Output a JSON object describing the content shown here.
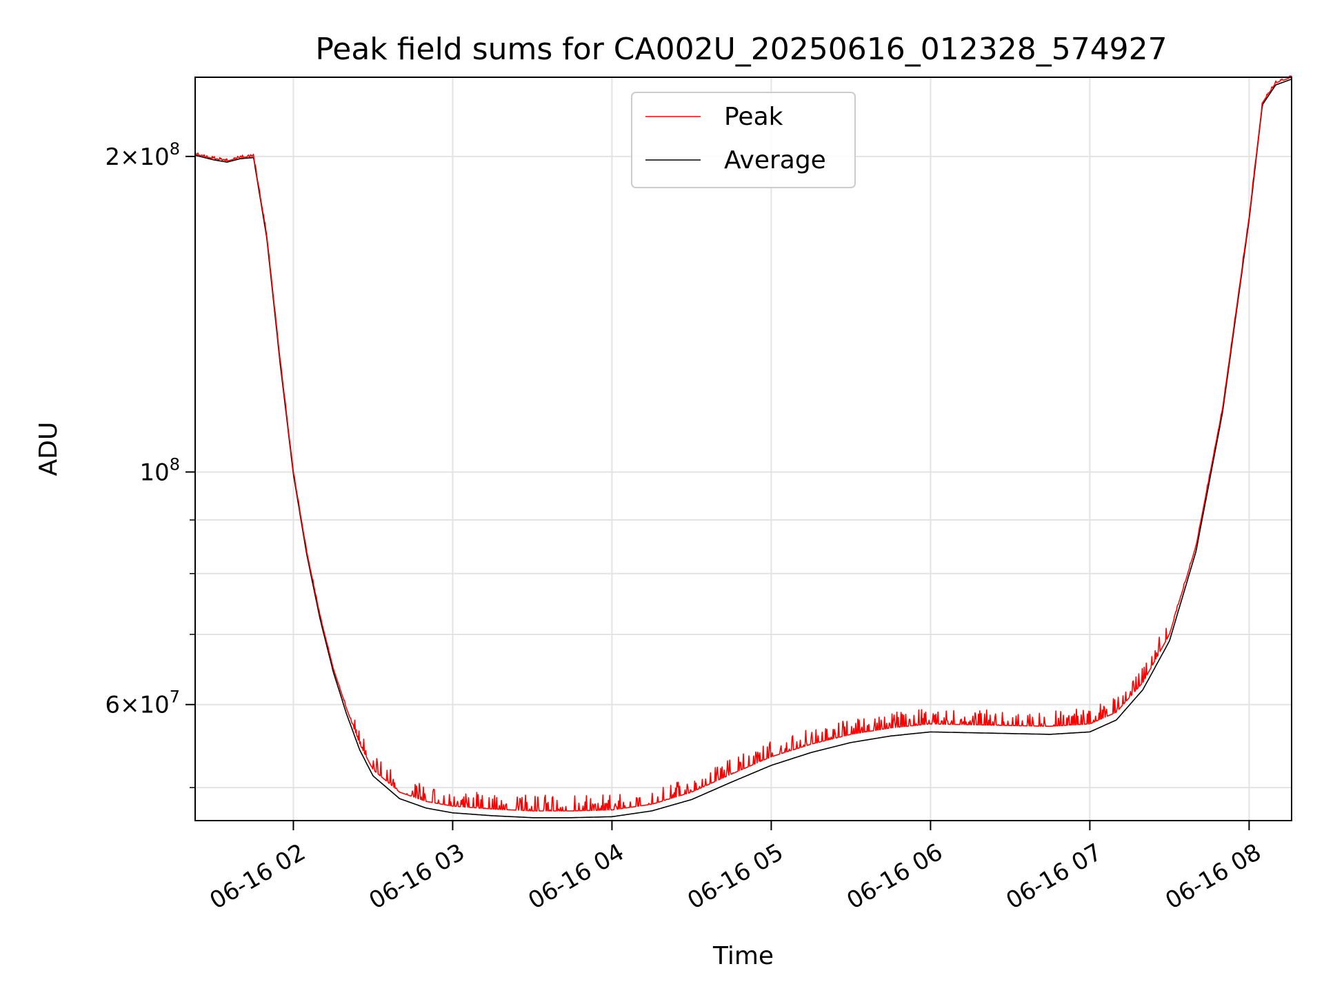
{
  "chart_data": {
    "type": "line",
    "title": "Peak field sums for CA002U_20250616_012328_574927",
    "xlabel": "Time",
    "ylabel": "ADU",
    "y_scale": "log",
    "xlim": [
      "2025-06-16 01:23",
      "2025-06-16 08:16"
    ],
    "ylim": [
      46500000,
      238000000
    ],
    "grid": true,
    "legend_position": "top-center",
    "x_ticks": [
      {
        "value": "2025-06-16 02:00",
        "label": "06-16 02"
      },
      {
        "value": "2025-06-16 03:00",
        "label": "06-16 03"
      },
      {
        "value": "2025-06-16 04:00",
        "label": "06-16 04"
      },
      {
        "value": "2025-06-16 05:00",
        "label": "06-16 05"
      },
      {
        "value": "2025-06-16 06:00",
        "label": "06-16 06"
      },
      {
        "value": "2025-06-16 07:00",
        "label": "06-16 07"
      },
      {
        "value": "2025-06-16 08:00",
        "label": "06-16 08"
      }
    ],
    "y_major_ticks": [
      {
        "value": 200000000,
        "mant": "2×10",
        "exp": "8"
      },
      {
        "value": 100000000,
        "mant": "10",
        "exp": "8"
      },
      {
        "value": 60000000,
        "mant": "6×10",
        "exp": "7"
      }
    ],
    "y_minor_ticks": [
      50000000,
      70000000,
      80000000,
      90000000
    ],
    "x": [
      "2025-06-16 01:23",
      "2025-06-16 01:30",
      "2025-06-16 01:35",
      "2025-06-16 01:40",
      "2025-06-16 01:45",
      "2025-06-16 01:50",
      "2025-06-16 01:55",
      "2025-06-16 02:00",
      "2025-06-16 02:05",
      "2025-06-16 02:10",
      "2025-06-16 02:15",
      "2025-06-16 02:20",
      "2025-06-16 02:25",
      "2025-06-16 02:30",
      "2025-06-16 02:40",
      "2025-06-16 02:50",
      "2025-06-16 03:00",
      "2025-06-16 03:15",
      "2025-06-16 03:30",
      "2025-06-16 03:45",
      "2025-06-16 04:00",
      "2025-06-16 04:15",
      "2025-06-16 04:30",
      "2025-06-16 04:45",
      "2025-06-16 05:00",
      "2025-06-16 05:15",
      "2025-06-16 05:30",
      "2025-06-16 05:45",
      "2025-06-16 06:00",
      "2025-06-16 06:15",
      "2025-06-16 06:30",
      "2025-06-16 06:45",
      "2025-06-16 07:00",
      "2025-06-16 07:10",
      "2025-06-16 07:20",
      "2025-06-16 07:30",
      "2025-06-16 07:40",
      "2025-06-16 07:50",
      "2025-06-16 08:00",
      "2025-06-16 08:05",
      "2025-06-16 08:10",
      "2025-06-16 08:16"
    ],
    "series": [
      {
        "name": "Peak",
        "color": "#ff0000",
        "noise": 0.035,
        "values": [
          201000000,
          199000000,
          198000000,
          199500000,
          200000000,
          168000000,
          128000000,
          100000000,
          84000000,
          73000000,
          65000000,
          59500000,
          55000000,
          52000000,
          49500000,
          48500000,
          48000000,
          47700000,
          47500000,
          47500000,
          47600000,
          48200000,
          49500000,
          51500000,
          53500000,
          55000000,
          56200000,
          57000000,
          57500000,
          57400000,
          57300000,
          57200000,
          57500000,
          59000000,
          63000000,
          70000000,
          85000000,
          115000000,
          175000000,
          225000000,
          235000000,
          238000000
        ]
      },
      {
        "name": "Average",
        "color": "#000000",
        "noise": 0,
        "values": [
          200500000,
          198500000,
          197500000,
          199000000,
          199500000,
          167000000,
          127000000,
          99500000,
          83500000,
          72500000,
          64500000,
          58800000,
          54300000,
          51300000,
          48800000,
          47800000,
          47300000,
          47000000,
          46800000,
          46800000,
          46900000,
          47500000,
          48700000,
          50600000,
          52500000,
          54000000,
          55200000,
          56000000,
          56500000,
          56400000,
          56300000,
          56200000,
          56500000,
          58000000,
          62000000,
          69000000,
          84000000,
          114000000,
          174000000,
          224000000,
          234000000,
          237000000
        ]
      }
    ]
  }
}
